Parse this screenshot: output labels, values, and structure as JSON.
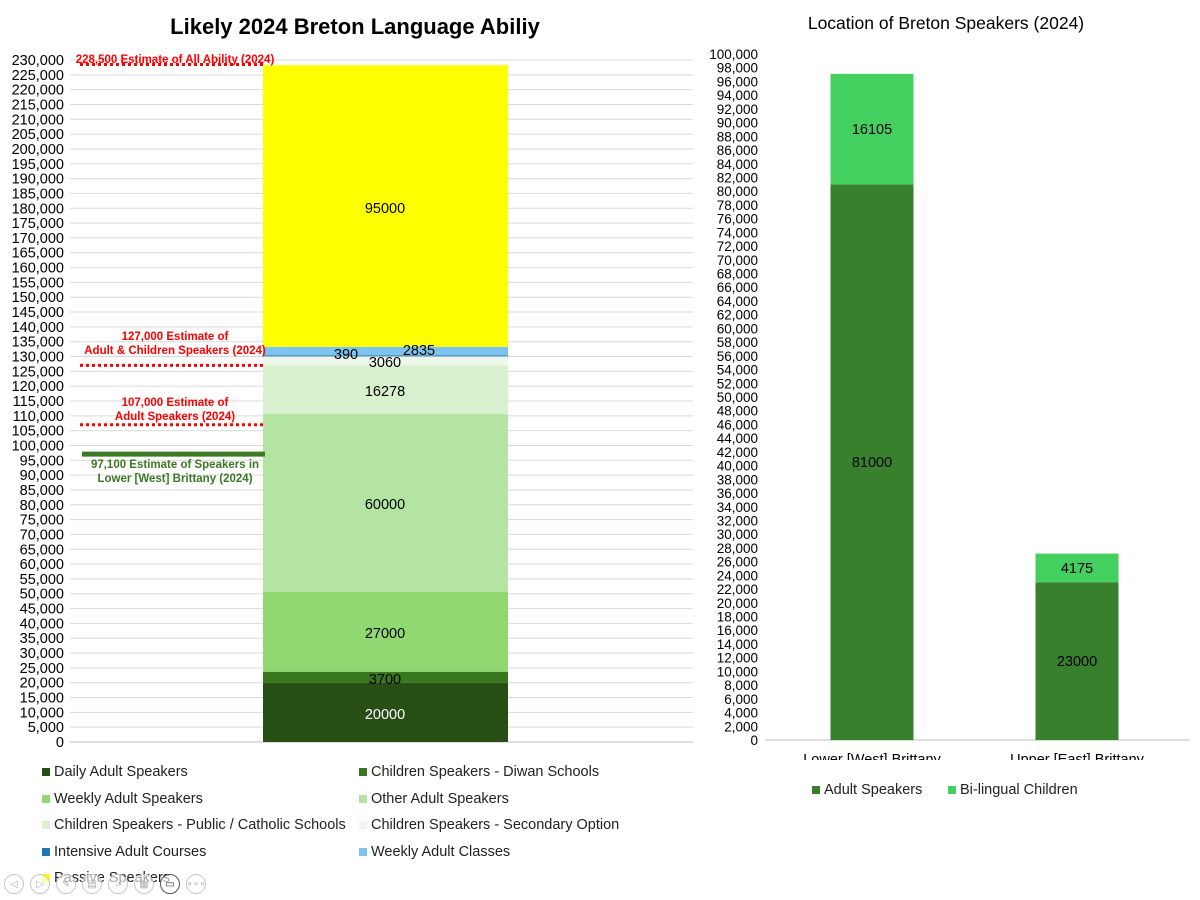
{
  "left_chart": {
    "title": "Likely 2024 Breton Language Abiliy",
    "annotations": [
      {
        "lines": [
          "228,500 Estimate of All Ability (2024)"
        ],
        "value": 228500,
        "color": "#ff0000",
        "style": "dotted"
      },
      {
        "lines": [
          "127,000 Estimate of",
          "Adult & Children Speakers (2024)"
        ],
        "value": 127000,
        "color": "#ff0000",
        "style": "dotted"
      },
      {
        "lines": [
          "107,000 Estimate of",
          "Adult Speakers (2024)"
        ],
        "value": 107000,
        "color": "#ff0000",
        "style": "dotted"
      },
      {
        "lines": [
          "97,100 Estimate of Speakers in",
          "Lower [West] Brittany (2024)"
        ],
        "value": 97100,
        "color": "#3a7a23",
        "style": "solid"
      }
    ]
  },
  "right_chart": {
    "title": "Location of Breton Speakers (2024)"
  },
  "chart_data": [
    {
      "type": "bar",
      "stacked": true,
      "title": "Likely 2024 Breton Language Abiliy",
      "categories": [
        ""
      ],
      "ylim": [
        0,
        230000
      ],
      "y_tick_step": 5000,
      "grid": true,
      "legend_position": "bottom",
      "series": [
        {
          "name": "Daily Adult Speakers",
          "values": [
            20000
          ],
          "color": "#274e13",
          "label": "20000",
          "label_color": "#ffffff"
        },
        {
          "name": "Children Speakers - Diwan Schools",
          "values": [
            3700
          ],
          "color": "#38761d",
          "label": "3700",
          "label_color": "#000000"
        },
        {
          "name": "Weekly Adult Speakers",
          "values": [
            27000
          ],
          "color": "#8fd970",
          "label": "27000",
          "label_color": "#000000"
        },
        {
          "name": "Other Adult Speakers",
          "values": [
            60000
          ],
          "color": "#b3e4a1",
          "label": "60000",
          "label_color": "#000000"
        },
        {
          "name": "Children Speakers - Public / Catholic Schools",
          "values": [
            16278
          ],
          "color": "#d9f1cf",
          "label": "16278",
          "label_color": "#000000"
        },
        {
          "name": "Children Speakers - Secondary Option",
          "values": [
            3060
          ],
          "color": "#eef8ea",
          "label": "3060",
          "label_color": "#000000"
        },
        {
          "name": "Intensive Adult Courses",
          "values": [
            390
          ],
          "color": "#1f77b4",
          "label": "390",
          "label_color": "#000000"
        },
        {
          "name": "Weekly Adult Classes",
          "values": [
            2835
          ],
          "color": "#7cc4ee",
          "label": "2835",
          "label_color": "#000000"
        },
        {
          "name": "Passive Speakers",
          "values": [
            95000
          ],
          "color": "#ffff00",
          "label": "95000",
          "label_color": "#000000"
        }
      ]
    },
    {
      "type": "bar",
      "stacked": true,
      "title": "Location of Breton Speakers (2024)",
      "categories": [
        "Lower [West] Brittany",
        "Upper [East] Brittany"
      ],
      "ylim": [
        0,
        100000
      ],
      "y_tick_step": 2000,
      "grid": false,
      "legend_position": "bottom",
      "series": [
        {
          "name": "Adult Speakers",
          "values": [
            81000,
            23000
          ],
          "color": "#38802b",
          "labels": [
            "81000",
            "23000"
          ]
        },
        {
          "name": "Bi-lingual Children",
          "values": [
            16105,
            4175
          ],
          "color": "#44d05e",
          "labels": [
            "16105",
            "4175"
          ]
        }
      ]
    }
  ],
  "nav": {
    "icons": [
      "prev-icon",
      "next-icon",
      "pen-icon",
      "view-icon",
      "zoom-icon",
      "grid-icon",
      "video-icon",
      "more-icon"
    ],
    "glyphs": [
      "◁",
      "▷",
      "✎",
      "▤",
      "⌕",
      "▦",
      "▭",
      "∘∘∘"
    ]
  }
}
